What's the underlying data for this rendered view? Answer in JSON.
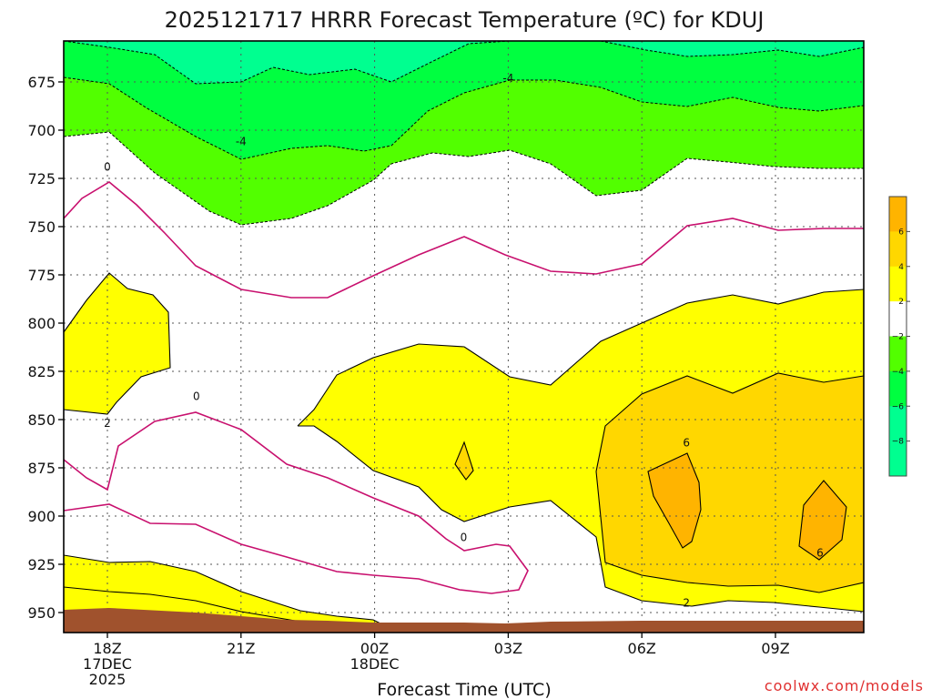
{
  "chart_data": {
    "type": "contour",
    "title": "2025121717 HRRR Forecast Temperature (ºC) for KDUJ",
    "xlabel": "Forecast Time (UTC)",
    "ylabel": "",
    "credit": "coolwx.com/models",
    "y_axis": {
      "ticks": [
        675,
        700,
        725,
        750,
        775,
        800,
        825,
        850,
        875,
        900,
        925,
        950
      ],
      "range": [
        655,
        960
      ],
      "direction": "pressure-decreasing-upward"
    },
    "x_axis": {
      "ticks": [
        {
          "hour": 18,
          "label": [
            "18Z",
            "17DEC",
            "2025"
          ]
        },
        {
          "hour": 21,
          "label": [
            "21Z"
          ]
        },
        {
          "hour": 24,
          "label": [
            "00Z",
            "18DEC"
          ]
        },
        {
          "hour": 27,
          "label": [
            "03Z"
          ]
        },
        {
          "hour": 30,
          "label": [
            "06Z"
          ]
        },
        {
          "hour": 33,
          "label": [
            "09Z"
          ]
        }
      ],
      "range": [
        17,
        35
      ]
    },
    "grid": "dotted",
    "contour_labels": [
      {
        "text": "0",
        "hour": 18.0,
        "p": 719
      },
      {
        "text": "-4",
        "hour": 21.0,
        "p": 706
      },
      {
        "text": "-4",
        "hour": 27.0,
        "p": 673
      },
      {
        "text": "2",
        "hour": 18.0,
        "p": 852
      },
      {
        "text": "0",
        "hour": 20.0,
        "p": 838
      },
      {
        "text": "0",
        "hour": 26.0,
        "p": 911
      },
      {
        "text": "6",
        "hour": 31.0,
        "p": 862
      },
      {
        "text": "2",
        "hour": 31.0,
        "p": 945
      },
      {
        "text": "6",
        "hour": 34.0,
        "p": 919
      }
    ],
    "colorbar": {
      "labels": [
        "6",
        "4",
        "2",
        "−2",
        "−4",
        "−6",
        "−8"
      ],
      "colors": [
        "#ffb400",
        "#ffd700",
        "#ffff00",
        "#ffffff",
        "#52ff00",
        "#00ff40",
        "#00ff90"
      ]
    },
    "colors": {
      "ground": "#a0522d",
      "warm_contour": "#000000",
      "zero_line": "#c8106e",
      "cold_contour": "#000000"
    }
  }
}
